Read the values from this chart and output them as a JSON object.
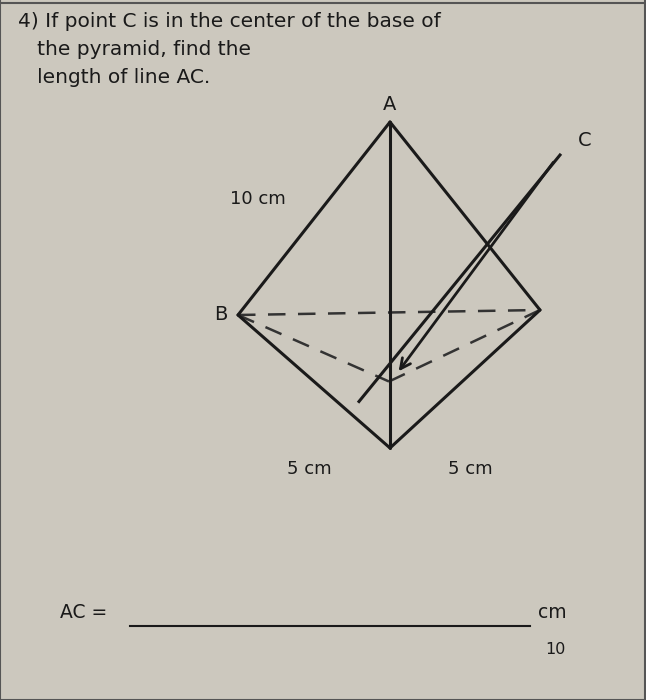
{
  "bg_color": "#ccc8be",
  "line_color": "#1a1a1a",
  "dashed_color": "#333333",
  "label_A": "A",
  "label_B": "B",
  "label_C": "C",
  "label_10cm": "10 cm",
  "label_5cm_left": "5 cm",
  "label_5cm_right": "5 cm",
  "answer_prefix": "AC = ",
  "answer_suffix": "cm",
  "answer_hint": "10",
  "title_line1": "4) If point C is in the center of the base of",
  "title_line2": "   the pyramid, find the",
  "title_line3": "   length of line AC.",
  "font_size_title": 14.5,
  "font_size_labels": 14,
  "font_size_dims": 13,
  "font_size_answer": 13.5
}
